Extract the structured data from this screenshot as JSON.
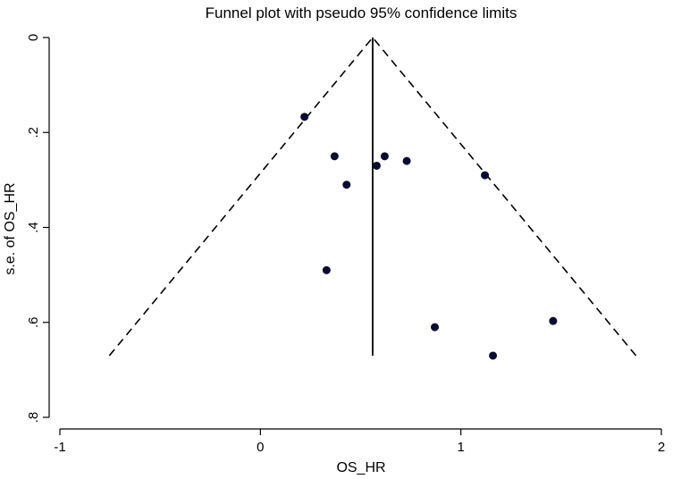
{
  "chart_data": {
    "type": "scatter",
    "title": "Funnel plot with pseudo 95% confidence limits",
    "xlabel": "OS_HR",
    "ylabel": "s.e. of OS_HR",
    "xlim": [
      -1,
      2
    ],
    "ylim": [
      0,
      0.8
    ],
    "y_reversed": true,
    "x_ticks": [
      {
        "value": -1,
        "label": "-1"
      },
      {
        "value": 0,
        "label": "0"
      },
      {
        "value": 1,
        "label": "1"
      },
      {
        "value": 2,
        "label": "2"
      }
    ],
    "y_ticks": [
      {
        "value": 0,
        "label": "0"
      },
      {
        "value": 0.2,
        "label": ".2"
      },
      {
        "value": 0.4,
        "label": ".4"
      },
      {
        "value": 0.6,
        "label": ".6"
      },
      {
        "value": 0.8,
        "label": ".8"
      }
    ],
    "grid": false,
    "pooled_estimate": 0.56,
    "max_se": 0.67,
    "confidence_multiplier": 1.96,
    "points": [
      {
        "x": 0.22,
        "y": 0.167
      },
      {
        "x": 0.37,
        "y": 0.25
      },
      {
        "x": 0.62,
        "y": 0.25
      },
      {
        "x": 0.58,
        "y": 0.27
      },
      {
        "x": 0.73,
        "y": 0.26
      },
      {
        "x": 0.43,
        "y": 0.31
      },
      {
        "x": 1.12,
        "y": 0.29
      },
      {
        "x": 0.33,
        "y": 0.49
      },
      {
        "x": 0.87,
        "y": 0.61
      },
      {
        "x": 1.46,
        "y": 0.597
      },
      {
        "x": 1.16,
        "y": 0.67
      }
    ]
  }
}
